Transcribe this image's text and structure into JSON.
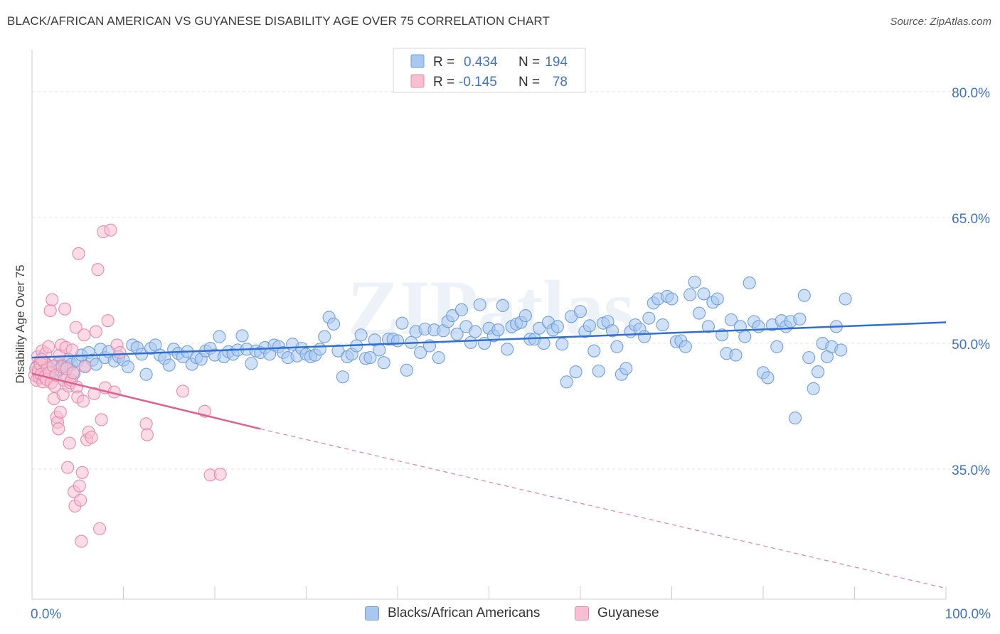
{
  "header": {
    "title": "BLACK/AFRICAN AMERICAN VS GUYANESE DISABILITY AGE OVER 75 CORRELATION CHART",
    "source": "Source: ZipAtlas.com"
  },
  "colors": {
    "blue_fill": "#a9c8f0",
    "blue_stroke": "#6f9fdc",
    "blue_line": "#2f6fd1",
    "pink_fill": "#f7bfd1",
    "pink_stroke": "#e88aaa",
    "pink_line": "#e0608e",
    "tick_label": "#3f73c8",
    "grid": "#e3e3e3"
  },
  "legend_top": {
    "rows": [
      {
        "r_label": "R =",
        "r_value": "0.434",
        "n_label": "N =",
        "n_value": "194",
        "color": "blue"
      },
      {
        "r_label": "R =",
        "r_value": "-0.145",
        "n_label": "N =",
        "n_value": "78",
        "color": "pink"
      }
    ]
  },
  "legend_bottom": {
    "items": [
      {
        "label": "Blacks/African Americans",
        "color": "blue"
      },
      {
        "label": "Guyanese",
        "color": "pink"
      }
    ]
  },
  "watermark": "ZIPatlas",
  "chart_data": {
    "type": "scatter",
    "title": "BLACK/AFRICAN AMERICAN VS GUYANESE DISABILITY AGE OVER 75 CORRELATION CHART",
    "xlabel": "",
    "ylabel": "Disability Age Over 75",
    "xlim": [
      0,
      100
    ],
    "ylim": [
      19.5,
      85
    ],
    "x_tick_labels": [
      "0.0%",
      "100.0%"
    ],
    "y_ticks": [
      35,
      50,
      65,
      80
    ],
    "y_tick_labels": [
      "35.0%",
      "50.0%",
      "65.0%",
      "80.0%"
    ],
    "grid": true,
    "legend_position": "top-center",
    "series": [
      {
        "name": "Blacks/African Americans",
        "r": 0.434,
        "n": 194,
        "trend": {
          "x0": 0,
          "y0": 48.3,
          "x1": 100,
          "y1": 52.5,
          "style": "solid"
        },
        "points": [
          [
            0.5,
            47.2
          ],
          [
            0.7,
            46.5
          ],
          [
            0.9,
            47.8
          ],
          [
            1.0,
            46.0
          ],
          [
            1.2,
            47.1
          ],
          [
            1.4,
            46.8
          ],
          [
            1.6,
            47.5
          ],
          [
            1.8,
            46.3
          ],
          [
            2.0,
            47.0
          ],
          [
            2.2,
            46.6
          ],
          [
            2.4,
            47.3
          ],
          [
            2.6,
            46.2
          ],
          [
            2.8,
            47.6
          ],
          [
            3.0,
            46.9
          ],
          [
            3.3,
            47.4
          ],
          [
            3.5,
            46.1
          ],
          [
            3.8,
            47.2
          ],
          [
            4.0,
            48.1
          ],
          [
            4.3,
            47.5
          ],
          [
            4.6,
            46.4
          ],
          [
            5.0,
            47.9
          ],
          [
            5.4,
            48.6
          ],
          [
            5.8,
            47.3
          ],
          [
            6.2,
            48.9
          ],
          [
            6.6,
            48.0
          ],
          [
            7.0,
            47.5
          ],
          [
            7.5,
            49.3
          ],
          [
            8.0,
            48.3
          ],
          [
            8.4,
            49.0
          ],
          [
            9.0,
            47.9
          ],
          [
            9.5,
            48.4
          ],
          [
            10.0,
            48.0
          ],
          [
            10.5,
            47.2
          ],
          [
            11.0,
            49.8
          ],
          [
            11.5,
            49.5
          ],
          [
            12.0,
            48.7
          ],
          [
            12.5,
            46.3
          ],
          [
            13.0,
            49.4
          ],
          [
            13.5,
            49.8
          ],
          [
            14.0,
            48.6
          ],
          [
            14.5,
            48.2
          ],
          [
            15.0,
            47.4
          ],
          [
            15.5,
            49.3
          ],
          [
            16.0,
            48.8
          ],
          [
            16.5,
            48.4
          ],
          [
            17.0,
            49.0
          ],
          [
            17.5,
            47.5
          ],
          [
            18.0,
            48.3
          ],
          [
            18.5,
            48.1
          ],
          [
            19.0,
            49.1
          ],
          [
            19.5,
            49.4
          ],
          [
            20.0,
            48.6
          ],
          [
            20.5,
            50.8
          ],
          [
            21.0,
            48.4
          ],
          [
            21.5,
            49.0
          ],
          [
            22.0,
            48.7
          ],
          [
            22.5,
            49.2
          ],
          [
            23.0,
            50.9
          ],
          [
            23.5,
            49.3
          ],
          [
            24.0,
            47.6
          ],
          [
            24.5,
            49.1
          ],
          [
            25.0,
            48.9
          ],
          [
            25.5,
            49.5
          ],
          [
            26.0,
            48.7
          ],
          [
            26.5,
            49.8
          ],
          [
            27.0,
            49.6
          ],
          [
            27.5,
            48.9
          ],
          [
            28.0,
            48.3
          ],
          [
            28.5,
            49.9
          ],
          [
            29.0,
            48.5
          ],
          [
            29.5,
            49.4
          ],
          [
            30.0,
            48.7
          ],
          [
            30.5,
            48.4
          ],
          [
            31.0,
            48.6
          ],
          [
            31.5,
            49.3
          ],
          [
            32.0,
            50.8
          ],
          [
            32.5,
            53.1
          ],
          [
            33.0,
            52.3
          ],
          [
            33.5,
            49.1
          ],
          [
            34.0,
            46.0
          ],
          [
            34.5,
            48.4
          ],
          [
            35.0,
            48.7
          ],
          [
            35.5,
            49.7
          ],
          [
            36.0,
            51.0
          ],
          [
            36.5,
            48.2
          ],
          [
            37.0,
            48.3
          ],
          [
            37.5,
            50.4
          ],
          [
            38.0,
            49.2
          ],
          [
            38.5,
            47.7
          ],
          [
            39.0,
            50.5
          ],
          [
            39.5,
            50.5
          ],
          [
            40.0,
            50.3
          ],
          [
            40.5,
            52.4
          ],
          [
            41.0,
            46.8
          ],
          [
            41.5,
            50.1
          ],
          [
            42.0,
            51.4
          ],
          [
            42.5,
            48.9
          ],
          [
            43.0,
            51.7
          ],
          [
            43.5,
            49.7
          ],
          [
            44.0,
            51.6
          ],
          [
            44.5,
            48.3
          ],
          [
            45.0,
            51.5
          ],
          [
            45.5,
            52.6
          ],
          [
            46.0,
            53.3
          ],
          [
            46.5,
            51.1
          ],
          [
            47.0,
            54.0
          ],
          [
            47.5,
            52.0
          ],
          [
            48.0,
            50.1
          ],
          [
            48.5,
            51.4
          ],
          [
            49.0,
            54.6
          ],
          [
            49.5,
            50.0
          ],
          [
            50.0,
            51.8
          ],
          [
            50.5,
            50.9
          ],
          [
            51.0,
            51.6
          ],
          [
            51.5,
            54.5
          ],
          [
            52.0,
            49.3
          ],
          [
            52.5,
            52.0
          ],
          [
            53.0,
            52.3
          ],
          [
            53.5,
            52.5
          ],
          [
            54.0,
            53.3
          ],
          [
            54.5,
            50.5
          ],
          [
            55.0,
            50.5
          ],
          [
            55.5,
            51.8
          ],
          [
            56.0,
            50.0
          ],
          [
            56.5,
            52.5
          ],
          [
            57.0,
            51.6
          ],
          [
            57.5,
            52.0
          ],
          [
            58.0,
            49.9
          ],
          [
            58.5,
            45.4
          ],
          [
            59.0,
            53.2
          ],
          [
            59.5,
            46.6
          ],
          [
            60.0,
            53.8
          ],
          [
            60.5,
            51.4
          ],
          [
            61.0,
            52.1
          ],
          [
            61.5,
            49.1
          ],
          [
            62.0,
            46.7
          ],
          [
            62.5,
            52.4
          ],
          [
            63.0,
            52.6
          ],
          [
            63.5,
            51.5
          ],
          [
            64.0,
            49.6
          ],
          [
            64.5,
            46.3
          ],
          [
            65.0,
            47.0
          ],
          [
            65.5,
            51.4
          ],
          [
            66.0,
            52.2
          ],
          [
            66.5,
            51.7
          ],
          [
            67.0,
            50.8
          ],
          [
            67.5,
            53.0
          ],
          [
            68.0,
            54.8
          ],
          [
            68.5,
            55.3
          ],
          [
            69.0,
            52.2
          ],
          [
            69.5,
            55.6
          ],
          [
            70.0,
            55.3
          ],
          [
            70.5,
            50.2
          ],
          [
            71.0,
            50.3
          ],
          [
            71.5,
            49.6
          ],
          [
            72.0,
            55.8
          ],
          [
            72.5,
            57.3
          ],
          [
            73.0,
            53.6
          ],
          [
            73.5,
            55.9
          ],
          [
            74.0,
            52.0
          ],
          [
            74.5,
            54.9
          ],
          [
            75.0,
            55.3
          ],
          [
            75.5,
            51.0
          ],
          [
            76.0,
            48.8
          ],
          [
            76.5,
            52.8
          ],
          [
            77.0,
            48.6
          ],
          [
            77.5,
            52.0
          ],
          [
            78.0,
            50.8
          ],
          [
            78.5,
            57.2
          ],
          [
            79.0,
            52.6
          ],
          [
            79.5,
            52.0
          ],
          [
            80.0,
            46.5
          ],
          [
            80.5,
            45.9
          ],
          [
            81.0,
            52.2
          ],
          [
            81.5,
            49.6
          ],
          [
            82.0,
            52.7
          ],
          [
            82.5,
            52.0
          ],
          [
            83.0,
            52.6
          ],
          [
            83.5,
            41.1
          ],
          [
            84.0,
            52.9
          ],
          [
            84.5,
            55.7
          ],
          [
            85.0,
            48.3
          ],
          [
            85.5,
            44.6
          ],
          [
            86.0,
            46.6
          ],
          [
            86.5,
            50.0
          ],
          [
            87.0,
            48.4
          ],
          [
            87.5,
            49.6
          ],
          [
            88.0,
            52.0
          ],
          [
            88.5,
            49.2
          ],
          [
            89.0,
            55.3
          ]
        ]
      },
      {
        "name": "Guyanese",
        "r": -0.145,
        "n": 78,
        "trend": {
          "x0": 0,
          "y0": 46.4,
          "x1": 25,
          "y1": 39.8,
          "style": "solid",
          "extend_to": {
            "x": 100,
            "y": 20.8,
            "style": "dashed"
          }
        },
        "points": [
          [
            0.3,
            46.2
          ],
          [
            0.4,
            47.0
          ],
          [
            0.5,
            45.6
          ],
          [
            0.6,
            48.4
          ],
          [
            0.7,
            46.8
          ],
          [
            0.8,
            45.9
          ],
          [
            0.9,
            47.5
          ],
          [
            1.0,
            46.3
          ],
          [
            1.1,
            49.1
          ],
          [
            1.2,
            45.4
          ],
          [
            1.3,
            47.8
          ],
          [
            1.4,
            46.0
          ],
          [
            1.5,
            48.8
          ],
          [
            1.6,
            45.7
          ],
          [
            1.7,
            47.1
          ],
          [
            1.8,
            49.6
          ],
          [
            1.9,
            46.5
          ],
          [
            2.0,
            53.9
          ],
          [
            2.1,
            45.3
          ],
          [
            2.2,
            55.2
          ],
          [
            2.3,
            47.3
          ],
          [
            2.4,
            43.4
          ],
          [
            2.5,
            44.9
          ],
          [
            2.6,
            46.2
          ],
          [
            2.7,
            41.2
          ],
          [
            2.8,
            40.6
          ],
          [
            2.9,
            39.8
          ],
          [
            3.0,
            48.6
          ],
          [
            3.1,
            41.8
          ],
          [
            3.2,
            49.8
          ],
          [
            3.3,
            47.2
          ],
          [
            3.4,
            43.9
          ],
          [
            3.5,
            45.6
          ],
          [
            3.6,
            54.1
          ],
          [
            3.7,
            49.5
          ],
          [
            3.8,
            47.0
          ],
          [
            3.9,
            35.2
          ],
          [
            4.0,
            44.9
          ],
          [
            4.1,
            38.1
          ],
          [
            4.2,
            45.3
          ],
          [
            4.3,
            45.6
          ],
          [
            4.4,
            49.2
          ],
          [
            4.5,
            46.5
          ],
          [
            4.6,
            32.3
          ],
          [
            4.7,
            30.6
          ],
          [
            4.8,
            51.9
          ],
          [
            4.9,
            44.8
          ],
          [
            5.0,
            43.6
          ],
          [
            5.1,
            60.7
          ],
          [
            5.2,
            33.0
          ],
          [
            5.3,
            31.3
          ],
          [
            5.4,
            26.4
          ],
          [
            5.5,
            34.6
          ],
          [
            5.6,
            43.1
          ],
          [
            5.7,
            51.0
          ],
          [
            5.8,
            47.2
          ],
          [
            6.0,
            38.5
          ],
          [
            6.2,
            39.4
          ],
          [
            6.5,
            38.8
          ],
          [
            6.8,
            44.0
          ],
          [
            7.0,
            51.4
          ],
          [
            7.2,
            58.8
          ],
          [
            7.4,
            27.9
          ],
          [
            7.6,
            40.9
          ],
          [
            7.8,
            63.3
          ],
          [
            8.0,
            44.7
          ],
          [
            8.3,
            52.7
          ],
          [
            8.6,
            63.5
          ],
          [
            9.0,
            44.2
          ],
          [
            9.3,
            49.8
          ],
          [
            9.6,
            48.9
          ],
          [
            12.5,
            40.4
          ],
          [
            12.6,
            39.1
          ],
          [
            16.5,
            44.3
          ],
          [
            18.9,
            41.9
          ],
          [
            19.5,
            34.3
          ],
          [
            20.6,
            34.4
          ],
          [
            1.05,
            48.1
          ]
        ]
      }
    ]
  }
}
